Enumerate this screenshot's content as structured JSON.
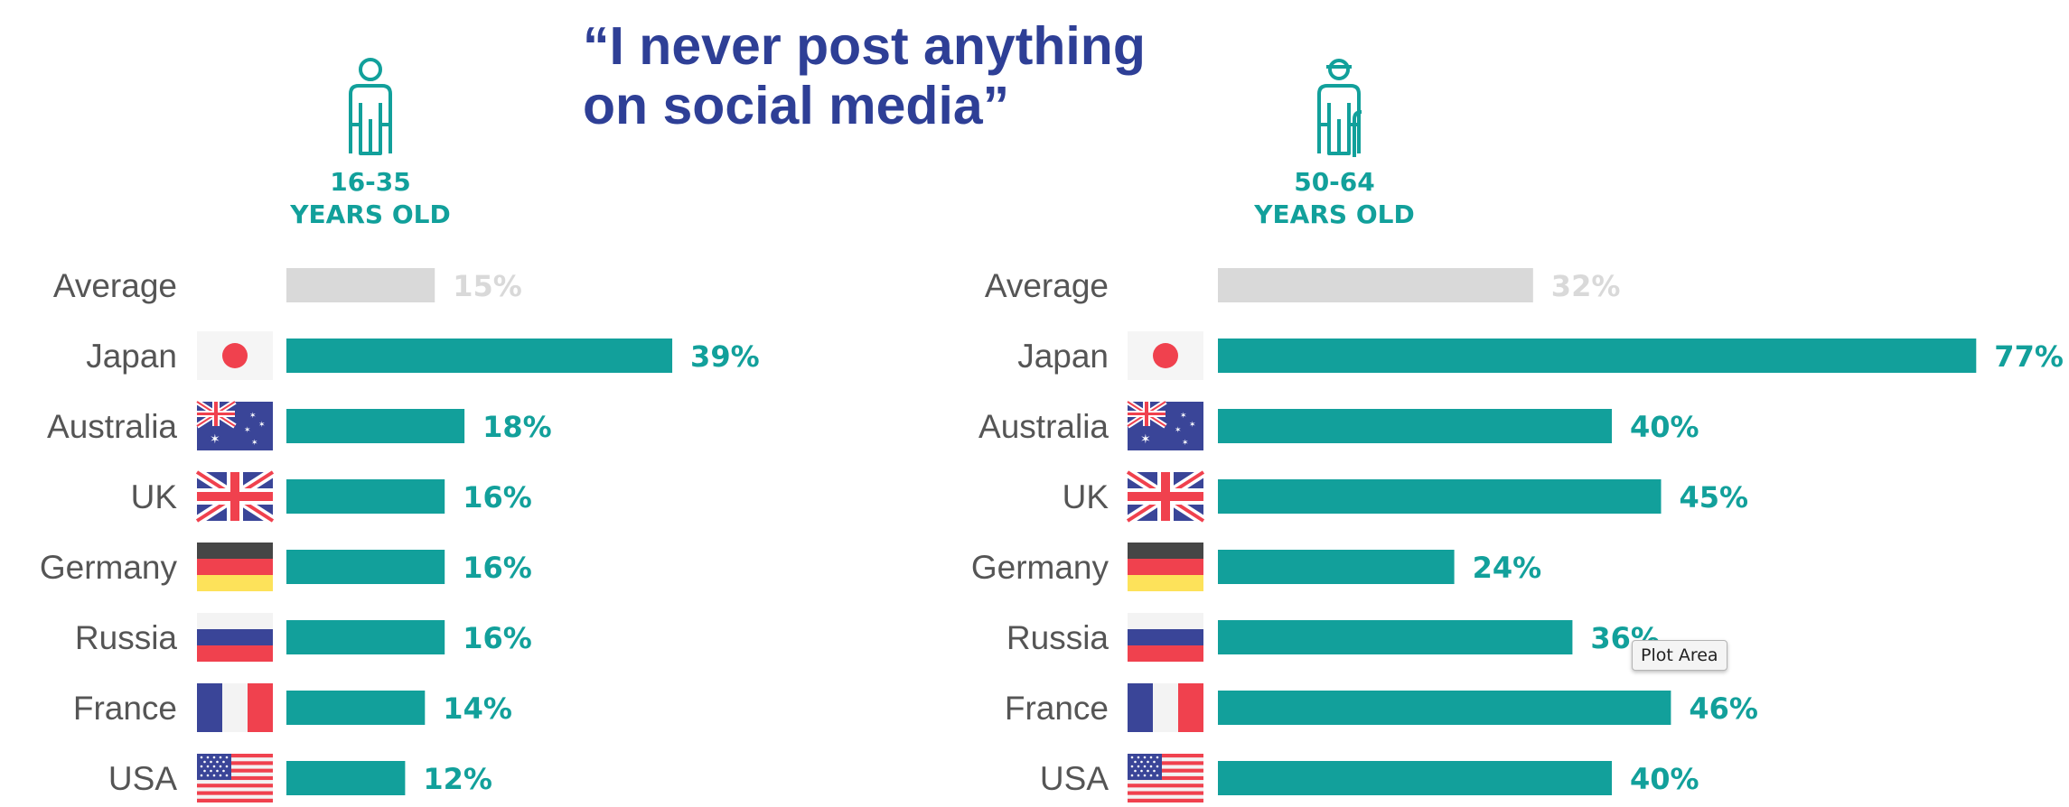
{
  "title_lines": [
    "“I never post anything",
    "on social media”"
  ],
  "colors": {
    "title": "#2e3f96",
    "teal": "#12a09b",
    "average_bar": "#d9d9d9",
    "average_label": "#d9d9d9",
    "country_label": "#555555"
  },
  "icons": [
    "young-person-icon",
    "older-person-with-cane-icon",
    "japan-flag-icon",
    "australia-flag-icon",
    "uk-flag-icon",
    "germany-flag-icon",
    "russia-flag-icon",
    "france-flag-icon",
    "usa-flag-icon"
  ],
  "tooltip": "Plot Area",
  "chart_data": [
    {
      "type": "bar",
      "orientation": "horizontal",
      "age_group": [
        "16-35",
        "YEARS OLD"
      ],
      "categories": [
        "Average",
        "Japan",
        "Australia",
        "UK",
        "Germany",
        "Russia",
        "France",
        "USA"
      ],
      "values": [
        15,
        39,
        18,
        16,
        16,
        16,
        14,
        12
      ],
      "value_labels": [
        "15%",
        "39%",
        "18%",
        "16%",
        "16%",
        "16%",
        "14%",
        "12%"
      ],
      "unit": "%"
    },
    {
      "type": "bar",
      "orientation": "horizontal",
      "age_group": [
        "50-64",
        "YEARS OLD"
      ],
      "categories": [
        "Average",
        "Japan",
        "Australia",
        "UK",
        "Germany",
        "Russia",
        "France",
        "USA"
      ],
      "values": [
        32,
        77,
        40,
        45,
        24,
        36,
        46,
        40
      ],
      "value_labels": [
        "32%",
        "77%",
        "40%",
        "45%",
        "24%",
        "36%",
        "46%",
        "40%"
      ],
      "unit": "%"
    }
  ]
}
